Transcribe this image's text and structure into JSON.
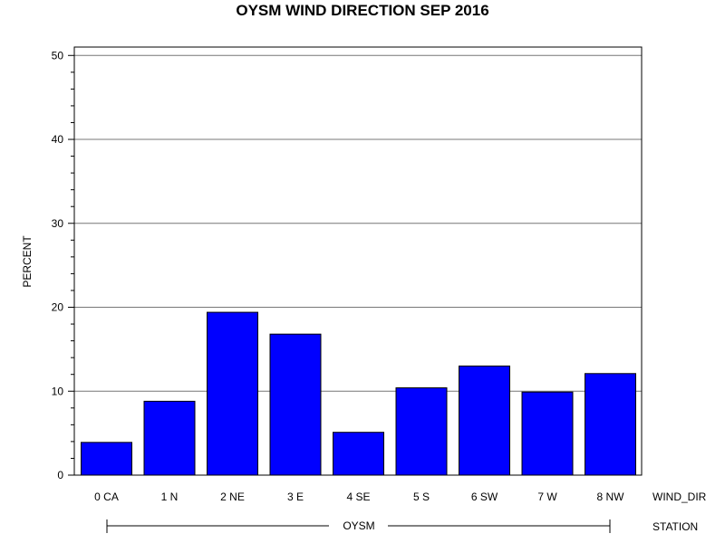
{
  "chart_data": {
    "type": "bar",
    "title": "OYSM WIND DIRECTION SEP 2016",
    "ylabel": "PERCENT",
    "xlabel": "WIND_DIR",
    "categories": [
      "0 CA",
      "1 N",
      "2 NE",
      "3 E",
      "4 SE",
      "5 S",
      "6 SW",
      "7 W",
      "8 NW"
    ],
    "values": [
      3.9,
      8.8,
      19.4,
      16.8,
      5.1,
      10.4,
      13.0,
      9.9,
      12.1
    ],
    "ylim": [
      0,
      51
    ],
    "yticks": [
      0,
      10,
      20,
      30,
      40,
      50
    ],
    "grid": true,
    "bar_color": "#0000ff",
    "group_label": "OYSM",
    "group_axis_label": "STATION"
  }
}
